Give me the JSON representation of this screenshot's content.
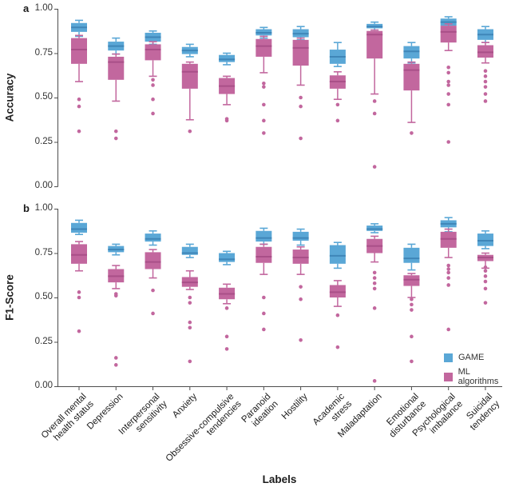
{
  "legend": {
    "items": [
      {
        "label": "GAME",
        "color": "#5aa7d6"
      },
      {
        "label": "ML algorithms",
        "color": "#c2679e"
      }
    ]
  },
  "axis_color": "#4d4d4d",
  "chart_data": [
    {
      "type": "boxplot",
      "panel_letter": "a",
      "ylabel": "Accuracy",
      "ylim": [
        0.0,
        1.0
      ],
      "yticks": [
        1.0,
        0.75,
        0.5,
        0.25,
        0.0
      ],
      "ytick_labels": [
        "1.00",
        "0.75",
        "0.50",
        "0.25",
        "0.00"
      ],
      "grid": false,
      "categories": [
        "Overall mental\nhealth status",
        "Depression",
        "Interpersonal\nsensitivity",
        "Anxiety",
        "Obsessive-compulsive\ntendencies",
        "Paranoid\nideation",
        "Hostility",
        "Academic\nstress",
        "Maladaptation",
        "Emotional\ndisturbance",
        "Psychological\nimbalance",
        "Suicidal\ntendency"
      ],
      "series": [
        {
          "name": "GAME",
          "color": "#5aa7d6",
          "median_color": "#3f86b8",
          "boxes": [
            {
              "lo": 0.845,
              "q1": 0.87,
              "med": 0.895,
              "q3": 0.92,
              "hi": 0.935,
              "outliers": []
            },
            {
              "lo": 0.745,
              "q1": 0.765,
              "med": 0.79,
              "q3": 0.815,
              "hi": 0.835,
              "outliers": []
            },
            {
              "lo": 0.8,
              "q1": 0.815,
              "med": 0.84,
              "q3": 0.865,
              "hi": 0.875,
              "outliers": []
            },
            {
              "lo": 0.73,
              "q1": 0.745,
              "med": 0.765,
              "q3": 0.785,
              "hi": 0.8,
              "outliers": []
            },
            {
              "lo": 0.685,
              "q1": 0.7,
              "med": 0.715,
              "q3": 0.74,
              "hi": 0.75,
              "outliers": []
            },
            {
              "lo": 0.835,
              "q1": 0.85,
              "med": 0.865,
              "q3": 0.885,
              "hi": 0.895,
              "outliers": []
            },
            {
              "lo": 0.825,
              "q1": 0.84,
              "med": 0.86,
              "q3": 0.885,
              "hi": 0.9,
              "outliers": []
            },
            {
              "lo": 0.675,
              "q1": 0.69,
              "med": 0.73,
              "q3": 0.77,
              "hi": 0.81,
              "outliers": []
            },
            {
              "lo": 0.88,
              "q1": 0.89,
              "med": 0.9,
              "q3": 0.915,
              "hi": 0.925,
              "outliers": []
            },
            {
              "lo": 0.695,
              "q1": 0.72,
              "med": 0.76,
              "q3": 0.79,
              "hi": 0.81,
              "outliers": []
            },
            {
              "lo": 0.895,
              "q1": 0.905,
              "med": 0.925,
              "q3": 0.945,
              "hi": 0.955,
              "outliers": []
            },
            {
              "lo": 0.81,
              "q1": 0.825,
              "med": 0.855,
              "q3": 0.885,
              "hi": 0.9,
              "outliers": []
            }
          ]
        },
        {
          "name": "ML algorithms",
          "color": "#c2679e",
          "median_color": "#a94f88",
          "boxes": [
            {
              "lo": 0.59,
              "q1": 0.69,
              "med": 0.77,
              "q3": 0.835,
              "hi": 0.85,
              "outliers": [
                0.49,
                0.45,
                0.31
              ]
            },
            {
              "lo": 0.48,
              "q1": 0.6,
              "med": 0.7,
              "q3": 0.73,
              "hi": 0.745,
              "outliers": [
                0.31,
                0.27
              ]
            },
            {
              "lo": 0.62,
              "q1": 0.71,
              "med": 0.77,
              "q3": 0.8,
              "hi": 0.815,
              "outliers": [
                0.6,
                0.57,
                0.49,
                0.41
              ]
            },
            {
              "lo": 0.375,
              "q1": 0.55,
              "med": 0.645,
              "q3": 0.69,
              "hi": 0.7,
              "outliers": [
                0.31
              ]
            },
            {
              "lo": 0.46,
              "q1": 0.52,
              "med": 0.565,
              "q3": 0.61,
              "hi": 0.62,
              "outliers": [
                0.38,
                0.37
              ]
            },
            {
              "lo": 0.64,
              "q1": 0.73,
              "med": 0.79,
              "q3": 0.83,
              "hi": 0.845,
              "outliers": [
                0.58,
                0.56,
                0.46,
                0.37,
                0.3
              ]
            },
            {
              "lo": 0.57,
              "q1": 0.68,
              "med": 0.78,
              "q3": 0.825,
              "hi": 0.835,
              "outliers": [
                0.5,
                0.45,
                0.27
              ]
            },
            {
              "lo": 0.49,
              "q1": 0.55,
              "med": 0.59,
              "q3": 0.625,
              "hi": 0.645,
              "outliers": [
                0.46,
                0.37
              ]
            },
            {
              "lo": 0.52,
              "q1": 0.72,
              "med": 0.855,
              "q3": 0.875,
              "hi": 0.88,
              "outliers": [
                0.48,
                0.41,
                0.11
              ]
            },
            {
              "lo": 0.36,
              "q1": 0.54,
              "med": 0.655,
              "q3": 0.69,
              "hi": 0.7,
              "outliers": [
                0.3
              ]
            },
            {
              "lo": 0.765,
              "q1": 0.81,
              "med": 0.87,
              "q3": 0.905,
              "hi": 0.915,
              "outliers": [
                0.67,
                0.64,
                0.59,
                0.57,
                0.52,
                0.46,
                0.25
              ]
            },
            {
              "lo": 0.695,
              "q1": 0.725,
              "med": 0.755,
              "q3": 0.795,
              "hi": 0.81,
              "outliers": [
                0.65,
                0.62,
                0.59,
                0.56,
                0.52,
                0.48
              ]
            }
          ]
        }
      ]
    },
    {
      "type": "boxplot",
      "panel_letter": "b",
      "ylabel": "F1-Score",
      "xlabel": "Labels",
      "ylim": [
        0.0,
        1.0
      ],
      "yticks": [
        1.0,
        0.75,
        0.5,
        0.25,
        0.0
      ],
      "ytick_labels": [
        "1.00",
        "0.75",
        "0.50",
        "0.25",
        "0.00"
      ],
      "grid": false,
      "categories": [
        "Overall mental\nhealth status",
        "Depression",
        "Interpersonal\nsensitivity",
        "Anxiety",
        "Obsessive-compulsive\ntendencies",
        "Paranoid\nideation",
        "Hostility",
        "Academic\nstress",
        "Maladaptation",
        "Emotional\ndisturbance",
        "Psychological\nimbalance",
        "Suicidal\ntendency"
      ],
      "series": [
        {
          "name": "GAME",
          "color": "#5aa7d6",
          "median_color": "#3f86b8",
          "boxes": [
            {
              "lo": 0.855,
              "q1": 0.865,
              "med": 0.885,
              "q3": 0.92,
              "hi": 0.935,
              "outliers": []
            },
            {
              "lo": 0.74,
              "q1": 0.755,
              "med": 0.77,
              "q3": 0.79,
              "hi": 0.8,
              "outliers": []
            },
            {
              "lo": 0.795,
              "q1": 0.815,
              "med": 0.83,
              "q3": 0.86,
              "hi": 0.875,
              "outliers": []
            },
            {
              "lo": 0.725,
              "q1": 0.74,
              "med": 0.75,
              "q3": 0.785,
              "hi": 0.8,
              "outliers": []
            },
            {
              "lo": 0.685,
              "q1": 0.7,
              "med": 0.715,
              "q3": 0.75,
              "hi": 0.76,
              "outliers": []
            },
            {
              "lo": 0.8,
              "q1": 0.815,
              "med": 0.835,
              "q3": 0.875,
              "hi": 0.89,
              "outliers": []
            },
            {
              "lo": 0.795,
              "q1": 0.82,
              "med": 0.835,
              "q3": 0.87,
              "hi": 0.885,
              "outliers": []
            },
            {
              "lo": 0.665,
              "q1": 0.69,
              "med": 0.735,
              "q3": 0.795,
              "hi": 0.81,
              "outliers": []
            },
            {
              "lo": 0.865,
              "q1": 0.875,
              "med": 0.885,
              "q3": 0.905,
              "hi": 0.915,
              "outliers": []
            },
            {
              "lo": 0.655,
              "q1": 0.695,
              "med": 0.72,
              "q3": 0.78,
              "hi": 0.8,
              "outliers": []
            },
            {
              "lo": 0.87,
              "q1": 0.895,
              "med": 0.915,
              "q3": 0.935,
              "hi": 0.95,
              "outliers": []
            },
            {
              "lo": 0.775,
              "q1": 0.79,
              "med": 0.82,
              "q3": 0.86,
              "hi": 0.875,
              "outliers": []
            }
          ]
        },
        {
          "name": "ML algorithms",
          "color": "#c2679e",
          "median_color": "#a94f88",
          "boxes": [
            {
              "lo": 0.65,
              "q1": 0.69,
              "med": 0.74,
              "q3": 0.8,
              "hi": 0.815,
              "outliers": [
                0.53,
                0.5,
                0.31
              ]
            },
            {
              "lo": 0.55,
              "q1": 0.585,
              "med": 0.62,
              "q3": 0.66,
              "hi": 0.68,
              "outliers": [
                0.52,
                0.51,
                0.16,
                0.12
              ]
            },
            {
              "lo": 0.61,
              "q1": 0.66,
              "med": 0.7,
              "q3": 0.755,
              "hi": 0.77,
              "outliers": [
                0.54,
                0.41
              ]
            },
            {
              "lo": 0.545,
              "q1": 0.56,
              "med": 0.585,
              "q3": 0.615,
              "hi": 0.65,
              "outliers": [
                0.5,
                0.47,
                0.36,
                0.33,
                0.14
              ]
            },
            {
              "lo": 0.465,
              "q1": 0.49,
              "med": 0.52,
              "q3": 0.555,
              "hi": 0.575,
              "outliers": [
                0.44,
                0.28,
                0.21
              ]
            },
            {
              "lo": 0.63,
              "q1": 0.695,
              "med": 0.73,
              "q3": 0.785,
              "hi": 0.8,
              "outliers": [
                0.5,
                0.41,
                0.32
              ]
            },
            {
              "lo": 0.63,
              "q1": 0.69,
              "med": 0.725,
              "q3": 0.77,
              "hi": 0.785,
              "outliers": [
                0.56,
                0.49,
                0.26
              ]
            },
            {
              "lo": 0.45,
              "q1": 0.5,
              "med": 0.53,
              "q3": 0.57,
              "hi": 0.595,
              "outliers": [
                0.4,
                0.22
              ]
            },
            {
              "lo": 0.7,
              "q1": 0.75,
              "med": 0.79,
              "q3": 0.83,
              "hi": 0.845,
              "outliers": [
                0.64,
                0.61,
                0.58,
                0.55,
                0.44,
                0.03
              ]
            },
            {
              "lo": 0.5,
              "q1": 0.565,
              "med": 0.6,
              "q3": 0.625,
              "hi": 0.635,
              "outliers": [
                0.49,
                0.46,
                0.43,
                0.28,
                0.14
              ]
            },
            {
              "lo": 0.725,
              "q1": 0.78,
              "med": 0.83,
              "q3": 0.87,
              "hi": 0.885,
              "outliers": [
                0.68,
                0.66,
                0.64,
                0.61,
                0.57,
                0.32
              ]
            },
            {
              "lo": 0.665,
              "q1": 0.705,
              "med": 0.725,
              "q3": 0.74,
              "hi": 0.75,
              "outliers": [
                0.67,
                0.65,
                0.62,
                0.59,
                0.55,
                0.47
              ]
            }
          ]
        }
      ]
    }
  ]
}
